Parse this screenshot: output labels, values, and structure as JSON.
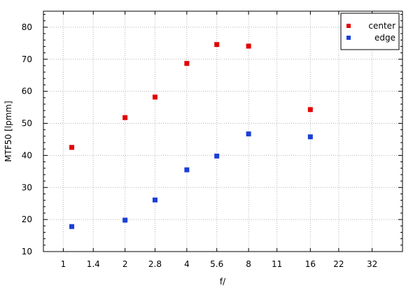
{
  "chart_data": {
    "type": "scatter",
    "title": "",
    "xlabel": "f/",
    "ylabel": "MTF50 [lpmm]",
    "x_scale": "log2",
    "x_ticks": [
      "1",
      "1.4",
      "2",
      "2.8",
      "4",
      "5.6",
      "8",
      "11",
      "16",
      "22",
      "32"
    ],
    "xlim": [
      0.8,
      45
    ],
    "ylim": [
      10,
      85
    ],
    "y_ticks": [
      10,
      20,
      30,
      40,
      50,
      60,
      70,
      80
    ],
    "grid": true,
    "legend_position": "top-right",
    "series": [
      {
        "name": "center",
        "color": "#e00000",
        "x": [
          1.1,
          2,
          2.8,
          4,
          5.6,
          8,
          16
        ],
        "y": [
          42.5,
          51.8,
          58.2,
          68.7,
          74.6,
          74.1,
          54.3
        ]
      },
      {
        "name": "edge",
        "color": "#1a3fd6",
        "x": [
          1.1,
          2,
          2.8,
          4,
          5.6,
          8,
          16
        ],
        "y": [
          17.8,
          19.8,
          26.1,
          35.5,
          39.8,
          46.7,
          45.8
        ]
      }
    ]
  }
}
